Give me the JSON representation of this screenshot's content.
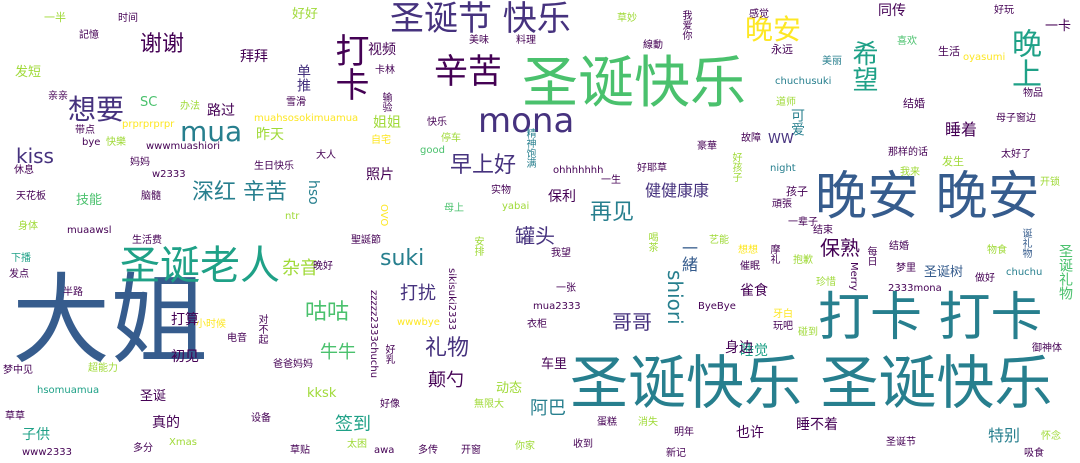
{
  "palette": [
    "#440154",
    "#46327e",
    "#365c8d",
    "#277f8e",
    "#1fa187",
    "#4ac16d",
    "#a0da39",
    "#fde725"
  ],
  "words": [
    {
      "id": "w0",
      "text": "大姐",
      "color": "#365c8d"
    },
    {
      "id": "w1",
      "text": "圣诞快乐 圣诞快乐",
      "color": "#277f8e"
    },
    {
      "id": "w2",
      "text": "圣诞快乐",
      "color": "#4ac16d"
    },
    {
      "id": "w3",
      "text": "晚安 晚安",
      "color": "#365c8d"
    },
    {
      "id": "w4",
      "text": "打卡 打卡",
      "color": "#277f8e"
    },
    {
      "id": "w5",
      "text": "圣诞老人",
      "color": "#1fa187"
    },
    {
      "id": "w6",
      "text": "圣诞节 快乐",
      "color": "#46327e"
    },
    {
      "id": "w7",
      "text": "辛苦",
      "color": "#440154"
    },
    {
      "id": "w8",
      "text": "mona",
      "color": "#46327e"
    },
    {
      "id": "w9",
      "text": "打卡",
      "color": "#440154"
    },
    {
      "id": "w10",
      "text": "晚安",
      "color": "#fde725"
    },
    {
      "id": "w11",
      "text": "晚上",
      "color": "#1fa187"
    },
    {
      "id": "w12",
      "text": "mua",
      "color": "#277f8e"
    },
    {
      "id": "w13",
      "text": "想要",
      "color": "#46327e"
    },
    {
      "id": "w14",
      "text": "希望",
      "color": "#1fa187"
    },
    {
      "id": "w15",
      "text": "谢谢",
      "color": "#440154"
    },
    {
      "id": "w16",
      "text": "深红 辛苦",
      "color": "#277f8e"
    },
    {
      "id": "w17",
      "text": "早上好",
      "color": "#46327e"
    },
    {
      "id": "w18",
      "text": "再见",
      "color": "#277f8e"
    },
    {
      "id": "w19",
      "text": "suki",
      "color": "#277f8e"
    },
    {
      "id": "w20",
      "text": "咕咕",
      "color": "#4ac16d"
    },
    {
      "id": "w21",
      "text": "礼物",
      "color": "#46327e"
    },
    {
      "id": "w22",
      "text": "kiss",
      "color": "#46327e"
    },
    {
      "id": "w23",
      "text": "shiori",
      "color": "#277f8e"
    },
    {
      "id": "w24",
      "text": "保熟",
      "color": "#440154"
    },
    {
      "id": "w25",
      "text": "罐头",
      "color": "#46327e"
    },
    {
      "id": "w26",
      "text": "打扰",
      "color": "#46327e"
    },
    {
      "id": "w27",
      "text": "哥哥",
      "color": "#46327e"
    },
    {
      "id": "w28",
      "text": "牛牛",
      "color": "#4ac16d"
    },
    {
      "id": "w29",
      "text": "杂音",
      "color": "#a0da39"
    },
    {
      "id": "w30",
      "text": "签到",
      "color": "#1fa187"
    },
    {
      "id": "w31",
      "text": "阿巴",
      "color": "#277f8e"
    },
    {
      "id": "w32",
      "text": "颠勺",
      "color": "#440154"
    },
    {
      "id": "w33",
      "text": "健健康康",
      "color": "#46327e"
    },
    {
      "id": "w34",
      "text": "一緒",
      "color": "#365c8d"
    },
    {
      "id": "w35",
      "text": "睡着",
      "color": "#440154"
    },
    {
      "id": "w36",
      "text": "同传",
      "color": "#440154"
    },
    {
      "id": "w37",
      "text": "视频",
      "color": "#440154"
    },
    {
      "id": "w38",
      "text": "拜拜",
      "color": "#440154"
    },
    {
      "id": "w39",
      "text": "单推",
      "color": "#46327e"
    },
    {
      "id": "w40",
      "text": "路过",
      "color": "#440154"
    },
    {
      "id": "w41",
      "text": "昨天",
      "color": "#a0da39"
    },
    {
      "id": "w42",
      "text": "照片",
      "color": "#440154"
    },
    {
      "id": "w43",
      "text": "保利",
      "color": "#440154"
    },
    {
      "id": "w44",
      "text": "打算",
      "color": "#440154"
    },
    {
      "id": "w45",
      "text": "初见",
      "color": "#440154"
    },
    {
      "id": "w46",
      "text": "特别",
      "color": "#277f8e"
    },
    {
      "id": "w47",
      "text": "也许",
      "color": "#440154"
    },
    {
      "id": "w48",
      "text": "睡不着",
      "color": "#440154"
    },
    {
      "id": "w49",
      "text": "睡觉",
      "color": "#1fa187"
    },
    {
      "id": "w50",
      "text": "雀食",
      "color": "#440154"
    },
    {
      "id": "w51",
      "text": "身边",
      "color": "#440154"
    },
    {
      "id": "w52",
      "text": "姐姐",
      "color": "#a0da39"
    },
    {
      "id": "w53",
      "text": "技能",
      "color": "#4ac16d"
    },
    {
      "id": "w54",
      "text": "发短",
      "color": "#a0da39"
    },
    {
      "id": "w55",
      "text": "一卡",
      "color": "#440154"
    },
    {
      "id": "w56",
      "text": "可爱",
      "color": "#277f8e"
    },
    {
      "id": "w57",
      "text": "圣诞树",
      "color": "#365c8d"
    },
    {
      "id": "w58",
      "text": "圣诞礼物",
      "color": "#4ac16d"
    },
    {
      "id": "w59",
      "text": "子供",
      "color": "#1fa187"
    },
    {
      "id": "w60",
      "text": "真的",
      "color": "#440154"
    },
    {
      "id": "w61",
      "text": "圣诞",
      "color": "#440154"
    },
    {
      "id": "w62",
      "text": "动态",
      "color": "#a0da39"
    },
    {
      "id": "w63",
      "text": "车里",
      "color": "#440154"
    },
    {
      "id": "w64",
      "text": "kksk",
      "color": "#a0da39"
    },
    {
      "id": "w65",
      "text": "hso",
      "color": "#277f8e"
    },
    {
      "id": "w66",
      "text": "好好",
      "color": "#a0da39"
    },
    {
      "id": "w67",
      "text": "SC",
      "color": "#4ac16d"
    },
    {
      "id": "w68",
      "text": "WW",
      "color": "#46327e"
    },
    {
      "id": "w69",
      "text": "结婚",
      "color": "#440154"
    },
    {
      "id": "w70",
      "text": "发生",
      "color": "#a0da39"
    },
    {
      "id": "w71",
      "text": "孩子",
      "color": "#440154"
    },
    {
      "id": "w72",
      "text": "永远",
      "color": "#440154"
    },
    {
      "id": "w73",
      "text": "生活",
      "color": "#440154"
    },
    {
      "id": "w74",
      "text": "一半",
      "color": "#a0da39"
    },
    {
      "id": "w75",
      "text": "記憶",
      "color": "#440154"
    },
    {
      "id": "w76",
      "text": "时间",
      "color": "#440154"
    },
    {
      "id": "w77",
      "text": "美味",
      "color": "#440154"
    },
    {
      "id": "w78",
      "text": "料理",
      "color": "#440154"
    },
    {
      "id": "w79",
      "text": "草妙",
      "color": "#a0da39"
    },
    {
      "id": "w80",
      "text": "我爱你",
      "color": "#440154"
    },
    {
      "id": "w81",
      "text": "感觉",
      "color": "#440154"
    },
    {
      "id": "w82",
      "text": "好玩",
      "color": "#440154"
    },
    {
      "id": "w83",
      "text": "線動",
      "color": "#440154"
    },
    {
      "id": "w84",
      "text": "美丽",
      "color": "#277f8e"
    },
    {
      "id": "w85",
      "text": "喜欢",
      "color": "#4ac16d"
    },
    {
      "id": "w86",
      "text": "oyasumi",
      "color": "#fde725"
    },
    {
      "id": "w87",
      "text": "卡林",
      "color": "#440154"
    },
    {
      "id": "w88",
      "text": "chuchusuki",
      "color": "#277f8e"
    },
    {
      "id": "w89",
      "text": "物品",
      "color": "#440154"
    },
    {
      "id": "w90",
      "text": "亲亲",
      "color": "#440154"
    },
    {
      "id": "w91",
      "text": "办法",
      "color": "#a0da39"
    },
    {
      "id": "w92",
      "text": "雪滑",
      "color": "#440154"
    },
    {
      "id": "w93",
      "text": "输验",
      "color": "#440154"
    },
    {
      "id": "w94",
      "text": "道师",
      "color": "#a0da39"
    },
    {
      "id": "w95",
      "text": "带点",
      "color": "#440154"
    },
    {
      "id": "w96",
      "text": "prprprprpr",
      "color": "#fde725"
    },
    {
      "id": "w97",
      "text": "muahsosokimuamua",
      "color": "#fde725"
    },
    {
      "id": "w98",
      "text": "快乐",
      "color": "#440154"
    },
    {
      "id": "w99",
      "text": "母子窗边",
      "color": "#440154"
    },
    {
      "id": "w100",
      "text": "bye",
      "color": "#440154"
    },
    {
      "id": "w101",
      "text": "快樂",
      "color": "#a0da39"
    },
    {
      "id": "w102",
      "text": "wwwmuashiori",
      "color": "#440154"
    },
    {
      "id": "w103",
      "text": "自宅",
      "color": "#fde725"
    },
    {
      "id": "w104",
      "text": "good",
      "color": "#4ac16d"
    },
    {
      "id": "w105",
      "text": "停车",
      "color": "#a0da39"
    },
    {
      "id": "w106",
      "text": "豪華",
      "color": "#440154"
    },
    {
      "id": "w107",
      "text": "故障",
      "color": "#440154"
    },
    {
      "id": "w108",
      "text": "那样的话",
      "color": "#440154"
    },
    {
      "id": "w109",
      "text": "太好了",
      "color": "#440154"
    },
    {
      "id": "w110",
      "text": "妈妈",
      "color": "#440154"
    },
    {
      "id": "w111",
      "text": "大人",
      "color": "#440154"
    },
    {
      "id": "w112",
      "text": "精神饱满",
      "color": "#277f8e"
    },
    {
      "id": "w113",
      "text": "好耶草",
      "color": "#440154"
    },
    {
      "id": "w114",
      "text": "好孩子",
      "color": "#a0da39"
    },
    {
      "id": "w115",
      "text": "night",
      "color": "#277f8e"
    },
    {
      "id": "w116",
      "text": "休息",
      "color": "#440154"
    },
    {
      "id": "w117",
      "text": "w2333",
      "color": "#440154"
    },
    {
      "id": "w118",
      "text": "生日快乐",
      "color": "#440154"
    },
    {
      "id": "w119",
      "text": "ohhhhhhh",
      "color": "#440154"
    },
    {
      "id": "w120",
      "text": "一生",
      "color": "#440154"
    },
    {
      "id": "w121",
      "text": "我来",
      "color": "#a0da39"
    },
    {
      "id": "w122",
      "text": "开锁",
      "color": "#a0da39"
    },
    {
      "id": "w123",
      "text": "天花板",
      "color": "#440154"
    },
    {
      "id": "w124",
      "text": "脑髓",
      "color": "#440154"
    },
    {
      "id": "w125",
      "text": "ntr",
      "color": "#a0da39"
    },
    {
      "id": "w126",
      "text": "OVO",
      "color": "#fde725"
    },
    {
      "id": "w127",
      "text": "实物",
      "color": "#440154"
    },
    {
      "id": "w128",
      "text": "母上",
      "color": "#4ac16d"
    },
    {
      "id": "w129",
      "text": "yabai",
      "color": "#a0da39"
    },
    {
      "id": "w130",
      "text": "结束",
      "color": "#440154"
    },
    {
      "id": "w131",
      "text": "頑張",
      "color": "#440154"
    },
    {
      "id": "w132",
      "text": "身体",
      "color": "#a0da39"
    },
    {
      "id": "w133",
      "text": "muaawsl",
      "color": "#440154"
    },
    {
      "id": "w134",
      "text": "一辈子",
      "color": "#440154"
    },
    {
      "id": "w135",
      "text": "下播",
      "color": "#1fa187"
    },
    {
      "id": "w136",
      "text": "生活费",
      "color": "#440154"
    },
    {
      "id": "w137",
      "text": "发点",
      "color": "#440154"
    },
    {
      "id": "w138",
      "text": "晚好",
      "color": "#440154"
    },
    {
      "id": "w139",
      "text": "聖誕節",
      "color": "#440154"
    },
    {
      "id": "w140",
      "text": "安排",
      "color": "#a0da39"
    },
    {
      "id": "w141",
      "text": "我望",
      "color": "#440154"
    },
    {
      "id": "w142",
      "text": "喝茶",
      "color": "#a0da39"
    },
    {
      "id": "w143",
      "text": "艺能",
      "color": "#a0da39"
    },
    {
      "id": "w144",
      "text": "想想",
      "color": "#fde725"
    },
    {
      "id": "w145",
      "text": "摩礼",
      "color": "#440154"
    },
    {
      "id": "w146",
      "text": "催眠",
      "color": "#440154"
    },
    {
      "id": "w147",
      "text": "抱歉",
      "color": "#a0da39"
    },
    {
      "id": "w148",
      "text": "每日",
      "color": "#440154"
    },
    {
      "id": "w149",
      "text": "结婚",
      "color": "#440154"
    },
    {
      "id": "w150",
      "text": "物食",
      "color": "#a0da39"
    },
    {
      "id": "w151",
      "text": "诞礼物",
      "color": "#365c8d"
    },
    {
      "id": "w152",
      "text": "梦里",
      "color": "#440154"
    },
    {
      "id": "w153",
      "text": "做好",
      "color": "#440154"
    },
    {
      "id": "w154",
      "text": "chuchu",
      "color": "#277f8e"
    },
    {
      "id": "w155",
      "text": "2333mona",
      "color": "#440154"
    },
    {
      "id": "w156",
      "text": "Merry",
      "color": "#440154"
    },
    {
      "id": "w157",
      "text": "珍惜",
      "color": "#a0da39"
    },
    {
      "id": "w158",
      "text": "半路",
      "color": "#440154"
    },
    {
      "id": "w159",
      "text": "sikisuki2333",
      "color": "#440154"
    },
    {
      "id": "w160",
      "text": "zzzzz2333chuchu",
      "color": "#440154"
    },
    {
      "id": "w161",
      "text": "对不起",
      "color": "#440154"
    },
    {
      "id": "w162",
      "text": "小时候",
      "color": "#fde725"
    },
    {
      "id": "w163",
      "text": "一张",
      "color": "#440154"
    },
    {
      "id": "w164",
      "text": "mua2333",
      "color": "#440154"
    },
    {
      "id": "w165",
      "text": "ByeBye",
      "color": "#440154"
    },
    {
      "id": "w166",
      "text": "牙白",
      "color": "#fde725"
    },
    {
      "id": "w167",
      "text": "衣柜",
      "color": "#440154"
    },
    {
      "id": "w168",
      "text": "wwwbye",
      "color": "#fde725"
    },
    {
      "id": "w169",
      "text": "电音",
      "color": "#440154"
    },
    {
      "id": "w170",
      "text": "玩吧",
      "color": "#440154"
    },
    {
      "id": "w171",
      "text": "碰到",
      "color": "#a0da39"
    },
    {
      "id": "w172",
      "text": "御神体",
      "color": "#440154"
    },
    {
      "id": "w173",
      "text": "梦中见",
      "color": "#440154"
    },
    {
      "id": "w174",
      "text": "超能力",
      "color": "#a0da39"
    },
    {
      "id": "w175",
      "text": "爸爸妈妈",
      "color": "#440154"
    },
    {
      "id": "w176",
      "text": "好乳",
      "color": "#440154"
    },
    {
      "id": "w177",
      "text": "hsomuamua",
      "color": "#1fa187"
    },
    {
      "id": "w178",
      "text": "好像",
      "color": "#440154"
    },
    {
      "id": "w179",
      "text": "無限大",
      "color": "#a0da39"
    },
    {
      "id": "w180",
      "text": "草草",
      "color": "#440154"
    },
    {
      "id": "w181",
      "text": "设备",
      "color": "#440154"
    },
    {
      "id": "w182",
      "text": "蛋糕",
      "color": "#440154"
    },
    {
      "id": "w183",
      "text": "消失",
      "color": "#a0da39"
    },
    {
      "id": "w184",
      "text": "明年",
      "color": "#440154"
    },
    {
      "id": "w185",
      "text": "圣诞节",
      "color": "#440154"
    },
    {
      "id": "w186",
      "text": "怀念",
      "color": "#a0da39"
    },
    {
      "id": "w187",
      "text": "www2333",
      "color": "#440154"
    },
    {
      "id": "w188",
      "text": "多分",
      "color": "#440154"
    },
    {
      "id": "w189",
      "text": "Xmas",
      "color": "#a0da39"
    },
    {
      "id": "w190",
      "text": "草贴",
      "color": "#440154"
    },
    {
      "id": "w191",
      "text": "太困",
      "color": "#a0da39"
    },
    {
      "id": "w192",
      "text": "awa",
      "color": "#440154"
    },
    {
      "id": "w193",
      "text": "多传",
      "color": "#440154"
    },
    {
      "id": "w194",
      "text": "开窗",
      "color": "#440154"
    },
    {
      "id": "w195",
      "text": "你家",
      "color": "#a0da39"
    },
    {
      "id": "w196",
      "text": "收到",
      "color": "#440154"
    },
    {
      "id": "w197",
      "text": "新记",
      "color": "#440154"
    },
    {
      "id": "w198",
      "text": "吸食",
      "color": "#440154"
    }
  ]
}
